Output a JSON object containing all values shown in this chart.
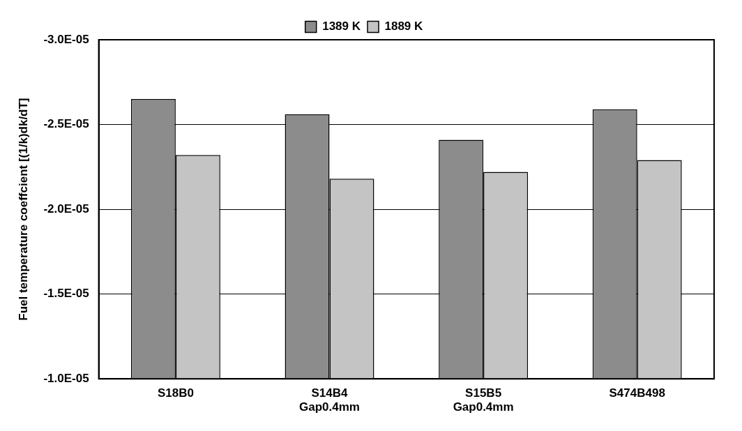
{
  "chart_data": {
    "type": "bar",
    "ylabel": "Fuel temperature coeffcient [(1/k)dk/dT]",
    "categories": [
      "S18B0",
      "S14B4\nGap0.4mm",
      "S15B5\nGap0.4mm",
      "S474B498"
    ],
    "series": [
      {
        "name": "1389 K",
        "color": "#8c8c8c",
        "values": [
          -2.65e-05,
          -2.56e-05,
          -2.41e-05,
          -2.59e-05
        ]
      },
      {
        "name": "1889 K",
        "color": "#c4c4c4",
        "values": [
          -2.32e-05,
          -2.18e-05,
          -2.22e-05,
          -2.29e-05
        ]
      }
    ],
    "ylim": [
      -1e-05,
      -3e-05
    ],
    "yticks": [
      {
        "value": -1e-05,
        "label": "-1.0E-05"
      },
      {
        "value": -1.5e-05,
        "label": "-1.5E-05"
      },
      {
        "value": -2e-05,
        "label": "-2.0E-05"
      },
      {
        "value": -2.5e-05,
        "label": "-2.5E-05"
      },
      {
        "value": -3e-05,
        "label": "-3.0E-05"
      }
    ],
    "grid": "y",
    "legend": "top"
  }
}
